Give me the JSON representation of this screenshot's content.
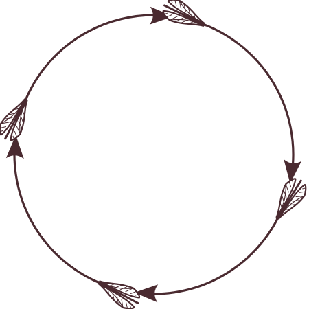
{
  "graphic": {
    "subject": "circular-arrow-frame",
    "arrow_count": 4,
    "colors": {
      "stroke": "#4a2a30",
      "feather_fill": "#ffffff",
      "background": "#ffffff"
    }
  }
}
